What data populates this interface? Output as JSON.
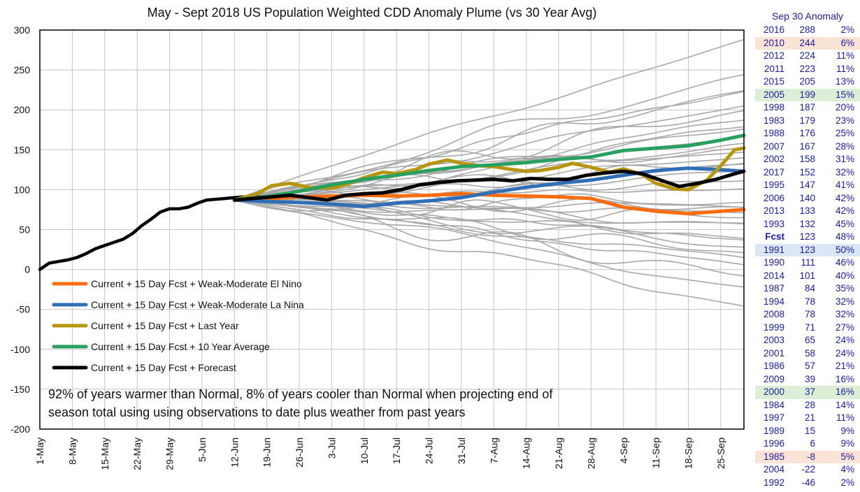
{
  "chart_data": {
    "type": "line",
    "title": "May - Sept 2018 US Population Weighted CDD Anomaly Plume (vs 30 Year Avg)",
    "xlabel": "",
    "ylabel": "",
    "ylim": [
      -200,
      300
    ],
    "yticks": [
      300,
      250,
      200,
      150,
      100,
      50,
      0,
      -50,
      -100,
      -150,
      -200
    ],
    "xticks": [
      "1-May",
      "8-May",
      "15-May",
      "22-May",
      "29-May",
      "5-Jun",
      "12-Jun",
      "19-Jun",
      "26-Jun",
      "3-Jul",
      "10-Jul",
      "17-Jul",
      "24-Jul",
      "31-Jul",
      "7-Aug",
      "14-Aug",
      "21-Aug",
      "28-Aug",
      "4-Sep",
      "11-Sep",
      "18-Sep",
      "25-Sep"
    ],
    "day_range": [
      0,
      152
    ],
    "grid": true,
    "legend": [
      {
        "label": "Current + 15 Day Fcst + Weak-Moderate El Nino",
        "color": "#f96d0f"
      },
      {
        "label": "Current + 15 Day Fcst + Weak-Moderate La Nina",
        "color": "#2f6fb7"
      },
      {
        "label": "Current + 15 Day Fcst + Last Year",
        "color": "#b8960c"
      },
      {
        "label": "Current + 15 Day Fcst + 10 Year Average",
        "color": "#27a060"
      },
      {
        "label": "Current + 15 Day Fcst + Forecast",
        "color": "#000000"
      }
    ],
    "annotation": [
      "92% of years warmer than Normal, 8% of years cooler than Normal when projecting end of",
      "season total using using observations to date plus weather from past years"
    ],
    "observed": {
      "days": [
        0,
        2,
        4,
        6,
        8,
        10,
        12,
        14,
        16,
        18,
        20,
        22,
        24,
        26,
        28,
        30,
        32,
        34,
        36,
        38,
        40,
        42,
        44,
        46,
        48
      ],
      "values": [
        0,
        8,
        10,
        12,
        15,
        20,
        26,
        30,
        34,
        38,
        45,
        55,
        63,
        72,
        76,
        76,
        78,
        83,
        87,
        88,
        89,
        90,
        91,
        91,
        91
      ]
    },
    "plume_start_day": 42,
    "plume_start_value": 87,
    "plume_end_values": [
      288,
      244,
      224,
      223,
      205,
      199,
      187,
      179,
      176,
      167,
      158,
      152,
      147,
      140,
      133,
      132,
      123,
      111,
      101,
      84,
      78,
      78,
      71,
      65,
      58,
      57,
      39,
      37,
      28,
      21,
      15,
      6,
      -8,
      -22,
      -46
    ],
    "series": [
      {
        "name": "Current + 15 Day Fcst + Weak-Moderate El Nino",
        "color": "#f96d0f",
        "days": [
          42,
          50,
          56,
          63,
          70,
          77,
          84,
          91,
          98,
          105,
          112,
          119,
          126,
          133,
          140,
          147,
          152
        ],
        "values": [
          87,
          89,
          91,
          92,
          93,
          92,
          93,
          95,
          93,
          92,
          91,
          89,
          78,
          73,
          70,
          73,
          75
        ]
      },
      {
        "name": "Current + 15 Day Fcst + Weak-Moderate La Nina",
        "color": "#2f6fb7",
        "days": [
          42,
          50,
          56,
          63,
          70,
          77,
          84,
          91,
          98,
          105,
          112,
          119,
          126,
          133,
          140,
          147,
          152
        ],
        "values": [
          87,
          85,
          84,
          82,
          79,
          83,
          86,
          90,
          97,
          103,
          108,
          112,
          118,
          124,
          127,
          125,
          123
        ]
      },
      {
        "name": "Current + 15 Day Fcst + Last Year",
        "color": "#b8960c",
        "days": [
          42,
          47,
          50,
          54,
          58,
          63,
          66,
          70,
          74,
          77,
          81,
          84,
          88,
          91,
          95,
          98,
          101,
          105,
          108,
          112,
          115,
          119,
          123,
          126,
          130,
          133,
          137,
          140,
          144,
          147,
          150,
          152
        ],
        "values": [
          87,
          95,
          105,
          108,
          103,
          102,
          106,
          115,
          122,
          120,
          125,
          132,
          137,
          133,
          130,
          129,
          126,
          123,
          124,
          128,
          133,
          128,
          122,
          126,
          119,
          108,
          101,
          100,
          112,
          130,
          150,
          152
        ]
      },
      {
        "name": "Current + 15 Day Fcst + 10 Year Average",
        "color": "#27a060",
        "days": [
          42,
          50,
          56,
          63,
          70,
          77,
          84,
          91,
          98,
          105,
          112,
          119,
          126,
          133,
          140,
          147,
          152
        ],
        "values": [
          87,
          92,
          98,
          106,
          113,
          118,
          124,
          129,
          131,
          134,
          138,
          141,
          149,
          152,
          155,
          162,
          168
        ]
      },
      {
        "name": "Current + 15 Day Fcst + Forecast",
        "color": "#000000",
        "days": [
          42,
          46,
          50,
          54,
          58,
          62,
          66,
          70,
          74,
          78,
          82,
          86,
          90,
          94,
          98,
          102,
          106,
          110,
          114,
          118,
          122,
          126,
          130,
          134,
          138,
          142,
          146,
          150,
          152
        ],
        "values": [
          87,
          89,
          91,
          93,
          90,
          87,
          93,
          95,
          96,
          100,
          106,
          109,
          111,
          112,
          113,
          111,
          114,
          113,
          113,
          118,
          121,
          123,
          120,
          112,
          104,
          108,
          113,
          120,
          123
        ]
      }
    ]
  },
  "table": {
    "title": "Sep 30 Anomaly",
    "rows": [
      {
        "year": "2016",
        "value": "288",
        "pct": "2%",
        "hl": ""
      },
      {
        "year": "2010",
        "value": "244",
        "pct": "6%",
        "hl": "orange"
      },
      {
        "year": "2012",
        "value": "224",
        "pct": "11%",
        "hl": ""
      },
      {
        "year": "2011",
        "value": "223",
        "pct": "11%",
        "hl": ""
      },
      {
        "year": "2015",
        "value": "205",
        "pct": "13%",
        "hl": ""
      },
      {
        "year": "2005",
        "value": "199",
        "pct": "15%",
        "hl": "green"
      },
      {
        "year": "1998",
        "value": "187",
        "pct": "20%",
        "hl": ""
      },
      {
        "year": "1983",
        "value": "179",
        "pct": "23%",
        "hl": ""
      },
      {
        "year": "1988",
        "value": "176",
        "pct": "25%",
        "hl": ""
      },
      {
        "year": "2007",
        "value": "167",
        "pct": "28%",
        "hl": ""
      },
      {
        "year": "2002",
        "value": "158",
        "pct": "31%",
        "hl": ""
      },
      {
        "year": "2017",
        "value": "152",
        "pct": "32%",
        "hl": ""
      },
      {
        "year": "1995",
        "value": "147",
        "pct": "41%",
        "hl": ""
      },
      {
        "year": "2006",
        "value": "140",
        "pct": "42%",
        "hl": ""
      },
      {
        "year": "2013",
        "value": "133",
        "pct": "42%",
        "hl": ""
      },
      {
        "year": "1993",
        "value": "132",
        "pct": "45%",
        "hl": ""
      },
      {
        "year": "Fcst",
        "value": "123",
        "pct": "48%",
        "hl": "fcst"
      },
      {
        "year": "1991",
        "value": "123",
        "pct": "50%",
        "hl": "blue"
      },
      {
        "year": "1990",
        "value": "111",
        "pct": "46%",
        "hl": ""
      },
      {
        "year": "2014",
        "value": "101",
        "pct": "40%",
        "hl": ""
      },
      {
        "year": "1987",
        "value": "84",
        "pct": "35%",
        "hl": ""
      },
      {
        "year": "1994",
        "value": "78",
        "pct": "32%",
        "hl": ""
      },
      {
        "year": "2008",
        "value": "78",
        "pct": "32%",
        "hl": ""
      },
      {
        "year": "1999",
        "value": "71",
        "pct": "27%",
        "hl": ""
      },
      {
        "year": "2003",
        "value": "65",
        "pct": "24%",
        "hl": ""
      },
      {
        "year": "2001",
        "value": "58",
        "pct": "24%",
        "hl": ""
      },
      {
        "year": "1986",
        "value": "57",
        "pct": "21%",
        "hl": ""
      },
      {
        "year": "2009",
        "value": "39",
        "pct": "16%",
        "hl": ""
      },
      {
        "year": "2000",
        "value": "37",
        "pct": "16%",
        "hl": "green"
      },
      {
        "year": "1984",
        "value": "28",
        "pct": "14%",
        "hl": ""
      },
      {
        "year": "1997",
        "value": "21",
        "pct": "11%",
        "hl": ""
      },
      {
        "year": "1989",
        "value": "15",
        "pct": "9%",
        "hl": ""
      },
      {
        "year": "1996",
        "value": "6",
        "pct": "9%",
        "hl": ""
      },
      {
        "year": "1985",
        "value": "-8",
        "pct": "5%",
        "hl": "orange"
      },
      {
        "year": "2004",
        "value": "-22",
        "pct": "4%",
        "hl": ""
      },
      {
        "year": "1992",
        "value": "-46",
        "pct": "2%",
        "hl": ""
      }
    ]
  }
}
